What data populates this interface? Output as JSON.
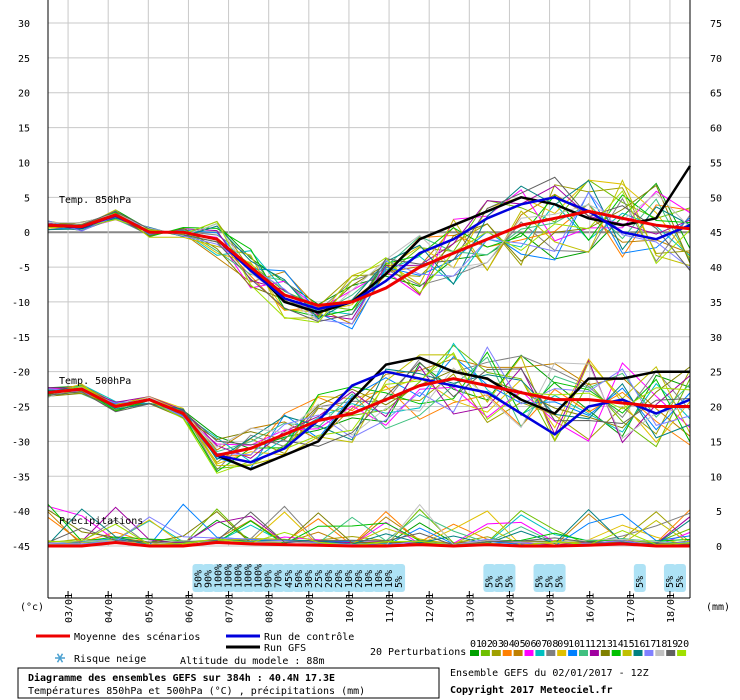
{
  "chart_data": {
    "type": "line",
    "left_axis_unit": "(°c)",
    "right_axis_unit": "(mm)",
    "left_ticks": [
      30,
      25,
      20,
      15,
      10,
      5,
      0,
      -5,
      -10,
      -15,
      -20,
      -25,
      -30,
      -35,
      -40,
      -45
    ],
    "right_ticks": [
      75,
      70,
      65,
      60,
      55,
      50,
      45,
      40,
      35,
      30,
      25,
      20,
      15,
      10,
      5,
      0
    ],
    "ylim_left": [
      -45,
      30
    ],
    "ylim_right": [
      0,
      75
    ],
    "dates": [
      "03/01",
      "04/01",
      "05/01",
      "06/01",
      "07/01",
      "08/01",
      "09/01",
      "10/01",
      "11/01",
      "12/01",
      "13/01",
      "14/01",
      "15/01",
      "16/01",
      "17/01",
      "18/01"
    ],
    "x_hours": [
      0,
      6,
      12,
      18,
      24,
      30,
      36,
      42,
      48,
      54,
      60,
      66,
      72,
      78,
      84,
      90,
      96,
      102,
      108,
      114,
      120,
      126,
      132,
      138,
      144,
      150,
      156,
      162,
      168,
      174,
      180,
      186,
      192,
      198,
      204,
      210,
      216,
      222,
      228,
      234,
      240,
      246,
      252,
      258,
      264,
      270,
      276,
      282,
      288,
      294,
      300,
      306,
      312,
      318,
      324,
      330,
      336,
      342,
      348,
      354,
      360,
      366,
      372,
      378,
      384
    ],
    "section_labels": [
      "Temp. 850hPa",
      "Temp. 500hPa",
      "Précipitations"
    ],
    "series": [
      {
        "name": "Moyenne des scénarios",
        "t850": [
          1,
          0.8,
          2.5,
          0,
          0,
          -1,
          -5,
          -9,
          -10.5,
          -10,
          -8,
          -5,
          -3,
          -1,
          1,
          2,
          3,
          2,
          1,
          0.5
        ],
        "t500": [
          -23,
          -22.5,
          -25,
          -24,
          -26,
          -32,
          -31,
          -29,
          -27,
          -26,
          -24,
          -22,
          -21,
          -22,
          -23,
          -24,
          -24,
          -24.5,
          -25,
          -25
        ],
        "precip": [
          0,
          0,
          0.5,
          0,
          0,
          0.5,
          0.3,
          0.2,
          0.1,
          0,
          0,
          0.2,
          0,
          0.2,
          0,
          0,
          0.1,
          0.3,
          0,
          0
        ]
      },
      {
        "name": "Run de contrôle",
        "t850": [
          1,
          0.7,
          2.4,
          0,
          0,
          -1,
          -5.5,
          -9.5,
          -11,
          -10,
          -7,
          -3,
          -1,
          2,
          4,
          5,
          3,
          0,
          -1,
          1
        ],
        "t500": [
          -23,
          -22.5,
          -25,
          -24,
          -26,
          -32,
          -33,
          -31,
          -27,
          -22,
          -20,
          -21,
          -22,
          -23,
          -26,
          -29,
          -25,
          -24,
          -26,
          -24
        ]
      },
      {
        "name": "Run GFS",
        "t850": [
          1,
          0.7,
          2.5,
          0,
          0,
          -1,
          -5,
          -10,
          -11.5,
          -10,
          -6,
          -1,
          1,
          3,
          5,
          4,
          2,
          1,
          2,
          9.5
        ],
        "t500": [
          -23,
          -22.5,
          -25,
          -24,
          -26,
          -32,
          -34,
          -32,
          -30,
          -24,
          -19,
          -18,
          -20,
          -21,
          -24,
          -26,
          -21,
          -21,
          -20,
          -20
        ]
      }
    ],
    "perturbations_count": 20,
    "perturbation_labels": [
      "01",
      "02",
      "03",
      "04",
      "05",
      "06",
      "07",
      "08",
      "09",
      "10",
      "11",
      "12",
      "13",
      "14",
      "15",
      "16",
      "17",
      "18",
      "19",
      "20"
    ],
    "snow_risk": [
      {
        "hour": 90,
        "pct": "50%"
      },
      {
        "hour": 96,
        "pct": "90%"
      },
      {
        "hour": 102,
        "pct": "100%"
      },
      {
        "hour": 108,
        "pct": "100%"
      },
      {
        "hour": 114,
        "pct": "100%"
      },
      {
        "hour": 120,
        "pct": "100%"
      },
      {
        "hour": 126,
        "pct": "100%"
      },
      {
        "hour": 132,
        "pct": "90%"
      },
      {
        "hour": 138,
        "pct": "70%"
      },
      {
        "hour": 144,
        "pct": "45%"
      },
      {
        "hour": 150,
        "pct": "50%"
      },
      {
        "hour": 156,
        "pct": "30%"
      },
      {
        "hour": 162,
        "pct": "25%"
      },
      {
        "hour": 168,
        "pct": "20%"
      },
      {
        "hour": 174,
        "pct": "20%"
      },
      {
        "hour": 180,
        "pct": "10%"
      },
      {
        "hour": 186,
        "pct": "20%"
      },
      {
        "hour": 192,
        "pct": "10%"
      },
      {
        "hour": 198,
        "pct": "10%"
      },
      {
        "hour": 204,
        "pct": "10%"
      },
      {
        "hour": 210,
        "pct": "5%"
      },
      {
        "hour": 264,
        "pct": "5%"
      },
      {
        "hour": 270,
        "pct": "5%"
      },
      {
        "hour": 276,
        "pct": "5%"
      },
      {
        "hour": 294,
        "pct": "5%"
      },
      {
        "hour": 300,
        "pct": "5%"
      },
      {
        "hour": 306,
        "pct": "5%"
      },
      {
        "hour": 354,
        "pct": "5%"
      },
      {
        "hour": 372,
        "pct": "5%"
      },
      {
        "hour": 378,
        "pct": "5%"
      }
    ]
  },
  "legend": {
    "mean": "Moyenne des scénarios",
    "control": "Run de contrôle",
    "gfs": "Run GFS",
    "perturbations": "20 Perturbations",
    "snow": "Risque neige",
    "altitude": "Altitude du modele : 88m"
  },
  "footer": {
    "title": "Diagramme des ensembles GEFS sur 384h : 40.4N 17.3E",
    "subtitle": "Températures 850hPa et 500hPa (°C) , précipitations (mm)",
    "run": "Ensemble GEFS du 02/01/2017 - 12Z",
    "copyright": "Copyright 2017 Meteociel.fr"
  },
  "colors": {
    "mean": "#ee0000",
    "control": "#0000dd",
    "gfs": "#000000",
    "snow_icon": "#aee2f5",
    "perturbations": [
      "#00a000",
      "#6fbf00",
      "#a0a000",
      "#ff8000",
      "#c08000",
      "#ff00ff",
      "#00c0c0",
      "#808080",
      "#e0c000",
      "#0080ff",
      "#40c080",
      "#a000a0",
      "#808000",
      "#00c000",
      "#c0c000",
      "#008080",
      "#8080ff",
      "#c0c0c0",
      "#606060",
      "#a0e000"
    ]
  }
}
